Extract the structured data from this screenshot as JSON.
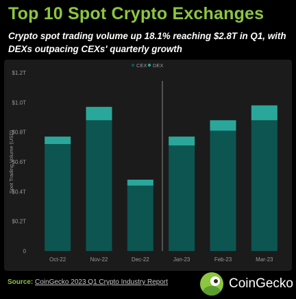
{
  "header": {
    "title": "Top 10 Spot Crypto Exchanges",
    "subtitle": "Crypto spot trading volume up 18.1% reaching $2.8T in Q1, with DEXs outpacing CEXs' quarterly growth"
  },
  "footer": {
    "source_label": "Source:",
    "source_text": "CoinGecko 2023 Q1 Crypto Industry Report",
    "brand": "CoinGecko"
  },
  "colors": {
    "cex": "#0d5551",
    "dex": "#2aa79b",
    "title": "#8dc63f",
    "panel": "#1b1b1b"
  },
  "chart_data": {
    "type": "bar",
    "stacked": true,
    "categories": [
      "Oct-22",
      "Nov-22",
      "Dec-22",
      "Jan-23",
      "Feb-23",
      "Mar-23"
    ],
    "series": [
      {
        "name": "CEX",
        "values": [
          0.72,
          0.88,
          0.44,
          0.71,
          0.81,
          0.88
        ]
      },
      {
        "name": "DEX",
        "values": [
          0.05,
          0.09,
          0.04,
          0.06,
          0.07,
          0.1
        ]
      }
    ],
    "ylabel": "Spot Trading Volume (USD)",
    "ylim": [
      0,
      1.2
    ],
    "yticks": [
      0,
      0.2,
      0.4,
      0.6,
      0.8,
      1.0,
      1.2
    ],
    "ytick_labels": [
      "0",
      "$0.2T",
      "$0.4T",
      "$0.6T",
      "$0.8T",
      "$1.0T",
      "$1.2T"
    ],
    "legend_position": "top-center",
    "divider_after_category": "Dec-22",
    "grid": false
  }
}
